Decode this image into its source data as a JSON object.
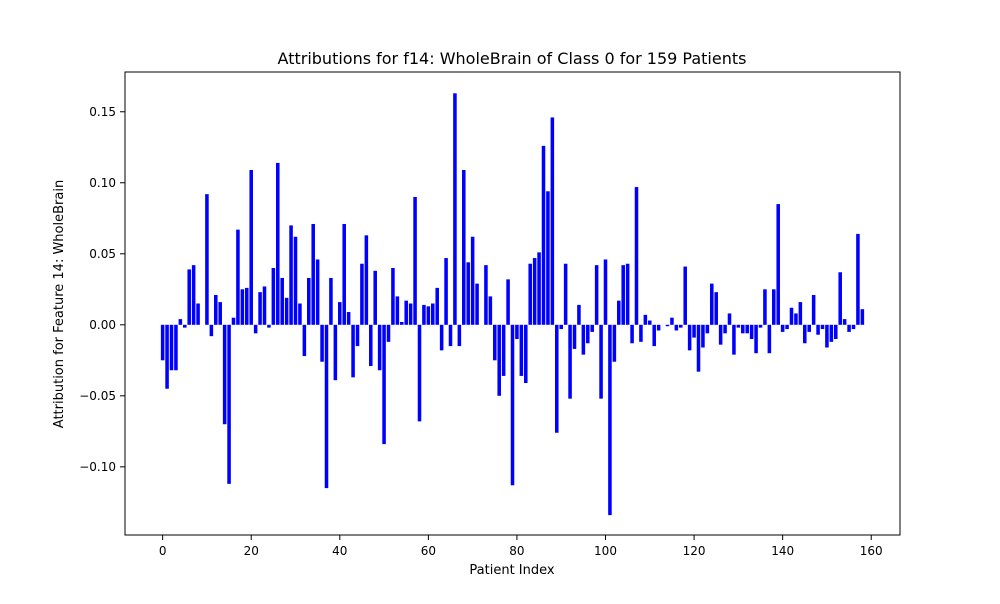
{
  "chart_data": {
    "type": "bar",
    "title": "Attributions for f14: WholeBrain of Class 0 for 159 Patients",
    "xlabel": "Patient Index",
    "ylabel": "Attribution for Feature 14: WholeBrain",
    "bar_color": "#0000ff",
    "xlim": [
      -8.5,
      166.5
    ],
    "ylim": [
      -0.148,
      0.178
    ],
    "xticks": [
      0,
      20,
      40,
      60,
      80,
      100,
      120,
      140,
      160
    ],
    "xtick_labels": [
      "0",
      "20",
      "40",
      "60",
      "80",
      "100",
      "120",
      "140",
      "160"
    ],
    "yticks": [
      -0.1,
      -0.05,
      0.0,
      0.05,
      0.1,
      0.15
    ],
    "ytick_labels": [
      "−0.10",
      "−0.05",
      "0.00",
      "0.05",
      "0.10",
      "0.15"
    ],
    "grid": false,
    "legend": "none",
    "x": [
      0,
      1,
      2,
      3,
      4,
      5,
      6,
      7,
      8,
      9,
      10,
      11,
      12,
      13,
      14,
      15,
      16,
      17,
      18,
      19,
      20,
      21,
      22,
      23,
      24,
      25,
      26,
      27,
      28,
      29,
      30,
      31,
      32,
      33,
      34,
      35,
      36,
      37,
      38,
      39,
      40,
      41,
      42,
      43,
      44,
      45,
      46,
      47,
      48,
      49,
      50,
      51,
      52,
      53,
      54,
      55,
      56,
      57,
      58,
      59,
      60,
      61,
      62,
      63,
      64,
      65,
      66,
      67,
      68,
      69,
      70,
      71,
      72,
      73,
      74,
      75,
      76,
      77,
      78,
      79,
      80,
      81,
      82,
      83,
      84,
      85,
      86,
      87,
      88,
      89,
      90,
      91,
      92,
      93,
      94,
      95,
      96,
      97,
      98,
      99,
      100,
      101,
      102,
      103,
      104,
      105,
      106,
      107,
      108,
      109,
      110,
      111,
      112,
      113,
      114,
      115,
      116,
      117,
      118,
      119,
      120,
      121,
      122,
      123,
      124,
      125,
      126,
      127,
      128,
      129,
      130,
      131,
      132,
      133,
      134,
      135,
      136,
      137,
      138,
      139,
      140,
      141,
      142,
      143,
      144,
      145,
      146,
      147,
      148,
      149,
      150,
      151,
      152,
      153,
      154,
      155,
      156,
      157,
      158
    ],
    "values": [
      -0.025,
      -0.045,
      -0.032,
      -0.032,
      0.004,
      -0.002,
      0.039,
      0.042,
      0.015,
      0.0,
      0.092,
      -0.008,
      0.021,
      0.016,
      -0.07,
      -0.112,
      0.005,
      0.067,
      0.025,
      0.026,
      0.109,
      -0.006,
      0.023,
      0.027,
      -0.002,
      0.04,
      0.114,
      0.033,
      0.019,
      0.07,
      0.062,
      0.015,
      -0.022,
      0.033,
      0.071,
      0.046,
      -0.026,
      -0.115,
      0.033,
      -0.039,
      0.016,
      0.071,
      0.009,
      -0.037,
      -0.015,
      0.043,
      0.063,
      -0.029,
      0.038,
      -0.032,
      -0.084,
      -0.012,
      0.04,
      0.02,
      0.002,
      0.017,
      0.015,
      0.09,
      -0.068,
      0.014,
      0.013,
      0.015,
      0.026,
      -0.018,
      0.047,
      -0.015,
      0.163,
      -0.015,
      0.109,
      0.044,
      0.062,
      0.029,
      0.0,
      0.042,
      0.02,
      -0.025,
      -0.05,
      -0.036,
      0.032,
      -0.113,
      -0.01,
      -0.036,
      -0.041,
      0.043,
      0.047,
      0.051,
      0.126,
      0.094,
      0.146,
      -0.076,
      -0.003,
      0.043,
      -0.052,
      -0.017,
      0.014,
      -0.021,
      -0.013,
      -0.005,
      0.042,
      -0.052,
      0.046,
      -0.134,
      -0.026,
      0.017,
      0.042,
      0.043,
      -0.013,
      0.097,
      -0.012,
      0.007,
      0.003,
      -0.015,
      -0.004,
      0.0,
      -0.001,
      0.005,
      -0.004,
      -0.002,
      0.041,
      -0.018,
      -0.009,
      -0.033,
      -0.016,
      -0.006,
      0.029,
      0.023,
      -0.014,
      -0.006,
      0.008,
      -0.021,
      -0.002,
      -0.006,
      -0.006,
      -0.01,
      -0.02,
      -0.002,
      0.025,
      -0.02,
      0.025,
      0.085,
      -0.005,
      -0.003,
      0.012,
      0.008,
      0.016,
      -0.013,
      -0.005,
      0.021,
      -0.007,
      -0.003,
      -0.016,
      -0.012,
      -0.01,
      0.037,
      0.004,
      -0.005,
      -0.003,
      0.064,
      0.011
    ]
  }
}
